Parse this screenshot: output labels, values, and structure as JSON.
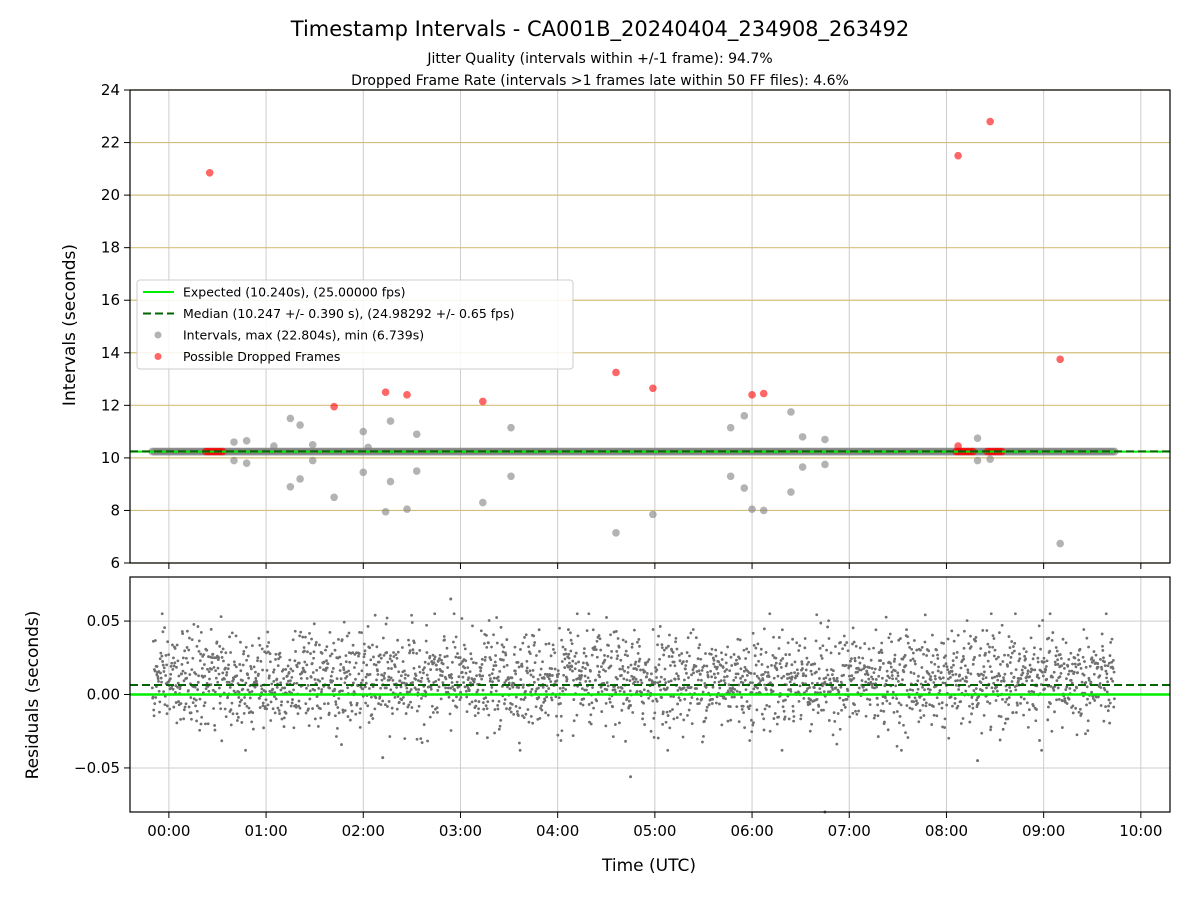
{
  "title": "Timestamp Intervals - CA001B_20240404_234908_263492",
  "subtitle1": "Jitter Quality (intervals within +/-1 frame): 94.7%",
  "subtitle2": "Dropped Frame Rate (intervals >1 frames late within 50 FF files): 4.6%",
  "colors": {
    "expected": "#00ee00",
    "median": "#006400",
    "intervals": "#808080",
    "dropped": "#ff0000",
    "top_grid": "#d4bf7a",
    "grid": "#cccccc"
  },
  "chart_data": [
    {
      "type": "scatter",
      "ylabel": "Intervals (seconds)",
      "ylim": [
        6,
        24
      ],
      "yticks": [
        "6",
        "8",
        "10",
        "12",
        "14",
        "16",
        "18",
        "20",
        "22",
        "24"
      ],
      "xlim_hours": [
        -0.4,
        10.3
      ],
      "expected": 10.24,
      "median": 10.247,
      "legend": [
        {
          "key": "expected",
          "label": "Expected (10.240s), (25.00000 fps)",
          "style": "solid-line"
        },
        {
          "key": "median",
          "label": "Median (10.247 +/- 0.390 s), (24.98292 +/- 0.65 fps)",
          "style": "dashed-line"
        },
        {
          "key": "intervals",
          "label": "Intervals, max (22.804s), min (6.739s)",
          "style": "gray-dot"
        },
        {
          "key": "dropped",
          "label": "Possible Dropped Frames",
          "style": "red-dot"
        }
      ],
      "legend_position": "center-left",
      "intervals_time_range_hours": [
        -0.17,
        9.73
      ],
      "outliers": [
        [
          0.67,
          10.6
        ],
        [
          0.67,
          9.9
        ],
        [
          0.8,
          10.65
        ],
        [
          0.8,
          9.8
        ],
        [
          1.08,
          10.45
        ],
        [
          1.25,
          11.5
        ],
        [
          1.25,
          8.9
        ],
        [
          1.35,
          11.25
        ],
        [
          1.35,
          9.2
        ],
        [
          1.48,
          10.5
        ],
        [
          1.48,
          9.9
        ],
        [
          1.7,
          8.5
        ],
        [
          2.0,
          11.0
        ],
        [
          2.0,
          9.45
        ],
        [
          2.05,
          10.4
        ],
        [
          2.23,
          7.95
        ],
        [
          2.28,
          11.4
        ],
        [
          2.28,
          9.1
        ],
        [
          2.45,
          8.05
        ],
        [
          2.55,
          10.9
        ],
        [
          2.55,
          9.5
        ],
        [
          3.23,
          8.3
        ],
        [
          3.52,
          11.15
        ],
        [
          3.52,
          9.3
        ],
        [
          4.6,
          7.15
        ],
        [
          4.98,
          7.85
        ],
        [
          5.78,
          11.15
        ],
        [
          5.78,
          9.3
        ],
        [
          5.92,
          11.6
        ],
        [
          5.92,
          8.85
        ],
        [
          6.0,
          8.05
        ],
        [
          6.12,
          8.0
        ],
        [
          6.4,
          11.75
        ],
        [
          6.4,
          8.7
        ],
        [
          6.52,
          10.8
        ],
        [
          6.52,
          9.65
        ],
        [
          6.75,
          10.7
        ],
        [
          6.75,
          9.75
        ],
        [
          8.32,
          10.75
        ],
        [
          8.32,
          9.9
        ],
        [
          8.45,
          9.95
        ],
        [
          9.17,
          6.74
        ]
      ],
      "dropped": [
        [
          0.42,
          20.85
        ],
        [
          1.7,
          11.95
        ],
        [
          2.23,
          12.5
        ],
        [
          2.45,
          12.4
        ],
        [
          3.23,
          12.15
        ],
        [
          4.6,
          13.25
        ],
        [
          4.98,
          12.65
        ],
        [
          6.0,
          12.4
        ],
        [
          6.12,
          12.45
        ],
        [
          8.12,
          21.5
        ],
        [
          8.45,
          22.8
        ],
        [
          9.17,
          13.75
        ],
        [
          8.12,
          10.45
        ]
      ],
      "dropped_clusters_hours": [
        [
          0.38,
          0.58
        ],
        [
          8.1,
          8.3
        ],
        [
          8.42,
          8.58
        ]
      ]
    },
    {
      "type": "scatter",
      "ylabel": "Residuals (seconds)",
      "ylim": [
        -0.08,
        0.08
      ],
      "yticks": [
        {
          "v": 0.05,
          "t": "0.05"
        },
        {
          "v": 0.0,
          "t": "0.00"
        },
        {
          "v": -0.05,
          "t": "−0.05"
        }
      ],
      "expected_residual": 0.0,
      "median_residual": 0.0065,
      "xlabel": "Time (UTC)",
      "xticks": [
        {
          "h": 0,
          "t": "00:00"
        },
        {
          "h": 1,
          "t": "01:00"
        },
        {
          "h": 2,
          "t": "02:00"
        },
        {
          "h": 3,
          "t": "03:00"
        },
        {
          "h": 4,
          "t": "04:00"
        },
        {
          "h": 5,
          "t": "05:00"
        },
        {
          "h": 6,
          "t": "06:00"
        },
        {
          "h": 7,
          "t": "07:00"
        },
        {
          "h": 8,
          "t": "08:00"
        },
        {
          "h": 9,
          "t": "09:00"
        },
        {
          "h": 10,
          "t": "10:00"
        }
      ],
      "noise_center": 0.01,
      "noise_spread": 0.018,
      "extreme_points": [
        [
          2.9,
          0.065
        ],
        [
          4.75,
          -0.056
        ],
        [
          2.2,
          -0.043
        ],
        [
          8.32,
          -0.045
        ],
        [
          6.75,
          -0.08
        ]
      ]
    }
  ]
}
